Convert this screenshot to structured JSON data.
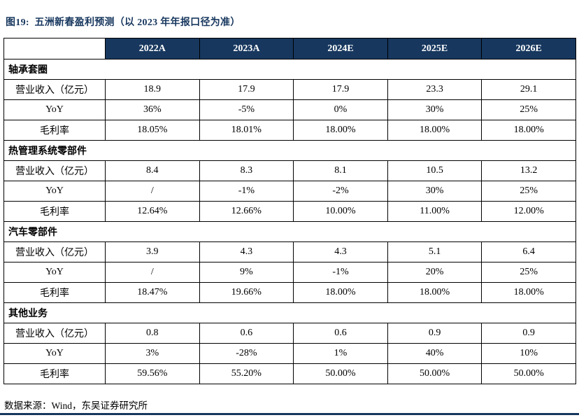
{
  "title": "图19:  五洲新春盈利预测（以 2023 年年报口径为准）",
  "source_note": "数据来源：Wind，东吴证券研究所",
  "colors": {
    "header_bg": "#17375E",
    "title_text": "#17375E",
    "border": "#000000"
  },
  "table": {
    "columns": [
      "",
      "2022A",
      "2023A",
      "2024E",
      "2025E",
      "2026E"
    ],
    "sections": [
      {
        "name": "轴承套圈",
        "rows": [
          {
            "label": "营业收入（亿元）",
            "values": [
              "18.9",
              "17.9",
              "17.9",
              "23.3",
              "29.1"
            ]
          },
          {
            "label": "YoY",
            "values": [
              "36%",
              "-5%",
              "0%",
              "30%",
              "25%"
            ]
          },
          {
            "label": "毛利率",
            "values": [
              "18.05%",
              "18.01%",
              "18.00%",
              "18.00%",
              "18.00%"
            ]
          }
        ]
      },
      {
        "name": "热管理系统零部件",
        "rows": [
          {
            "label": "营业收入（亿元）",
            "values": [
              "8.4",
              "8.3",
              "8.1",
              "10.5",
              "13.2"
            ]
          },
          {
            "label": "YoY",
            "values": [
              "/",
              "-1%",
              "-2%",
              "30%",
              "25%"
            ]
          },
          {
            "label": "毛利率",
            "values": [
              "12.64%",
              "12.66%",
              "10.00%",
              "11.00%",
              "12.00%"
            ]
          }
        ]
      },
      {
        "name": "汽车零部件",
        "rows": [
          {
            "label": "营业收入（亿元）",
            "values": [
              "3.9",
              "4.3",
              "4.3",
              "5.1",
              "6.4"
            ]
          },
          {
            "label": "YoY",
            "values": [
              "/",
              "9%",
              "-1%",
              "20%",
              "25%"
            ]
          },
          {
            "label": "毛利率",
            "values": [
              "18.47%",
              "19.66%",
              "18.00%",
              "18.00%",
              "18.00%"
            ]
          }
        ]
      },
      {
        "name": "其他业务",
        "rows": [
          {
            "label": "营业收入（亿元）",
            "values": [
              "0.8",
              "0.6",
              "0.6",
              "0.9",
              "0.9"
            ]
          },
          {
            "label": "YoY",
            "values": [
              "3%",
              "-28%",
              "1%",
              "40%",
              "10%"
            ]
          },
          {
            "label": "毛利率",
            "values": [
              "59.56%",
              "55.20%",
              "50.00%",
              "50.00%",
              "50.00%"
            ]
          }
        ]
      }
    ]
  }
}
